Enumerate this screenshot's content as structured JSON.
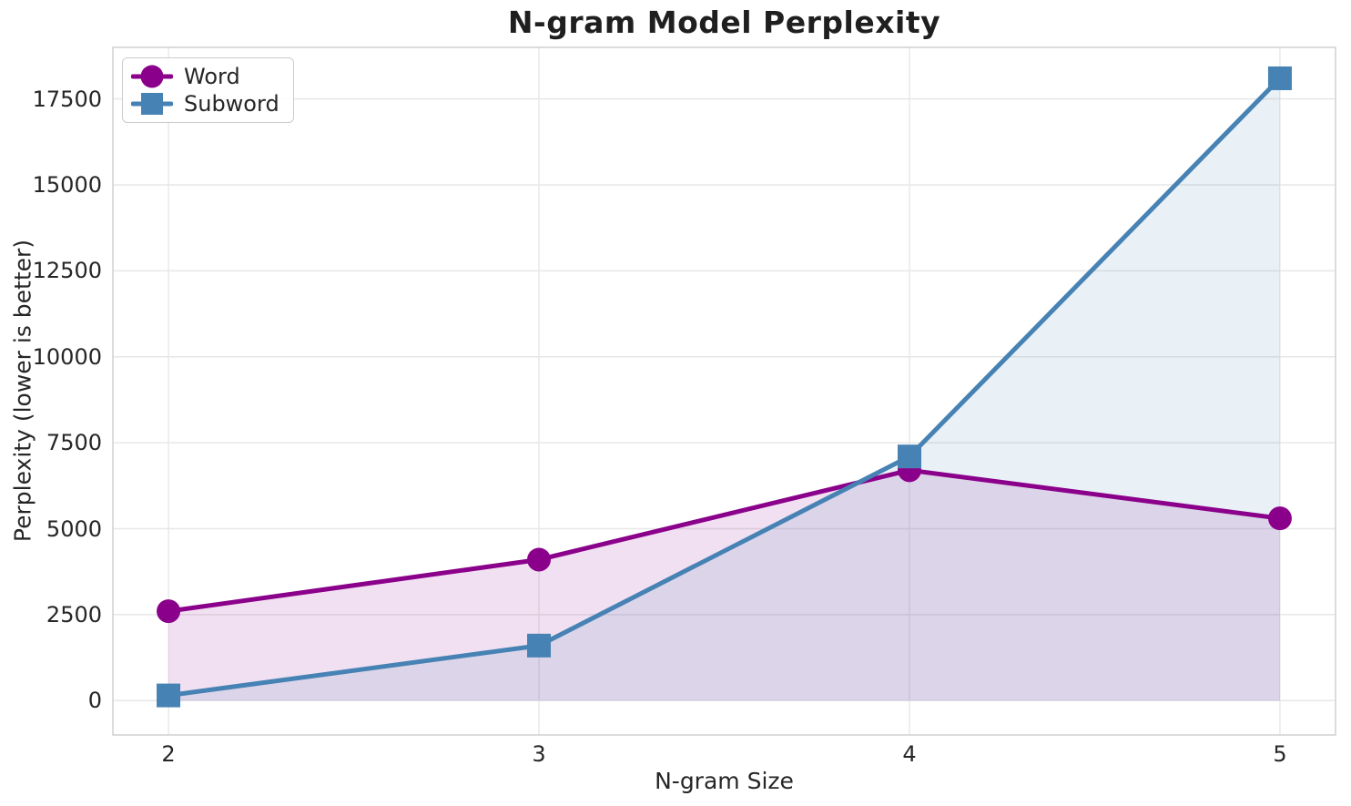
{
  "chart_data": {
    "type": "line",
    "title": "N-gram Model Perplexity",
    "xlabel": "N-gram Size",
    "ylabel": "Perplexity (lower is better)",
    "x": [
      2,
      3,
      4,
      5
    ],
    "series": [
      {
        "name": "Word",
        "values": [
          2600,
          4100,
          6700,
          5300
        ],
        "color": "#8B008B",
        "marker": "circle",
        "fill_to_zero": true,
        "fill_opacity": 0.12
      },
      {
        "name": "Subword",
        "values": [
          150,
          1600,
          7100,
          18100
        ],
        "color": "#4682B4",
        "marker": "square",
        "fill_to_zero": true,
        "fill_opacity": 0.12
      }
    ],
    "xticks": [
      2,
      3,
      4,
      5
    ],
    "yticks": [
      0,
      2500,
      5000,
      7500,
      10000,
      12500,
      15000,
      17500
    ],
    "xlim": [
      1.85,
      5.15
    ],
    "ylim": [
      -1000,
      19000
    ],
    "grid": true,
    "legend_position": "upper-left"
  },
  "style": {
    "background": "#ffffff",
    "grid_color": "#e7e7e7",
    "spine_color": "#d4d4d4",
    "tick_text_color": "#262626",
    "title_color": "#1f1f1f",
    "legend_border_color": "#cccccc"
  }
}
